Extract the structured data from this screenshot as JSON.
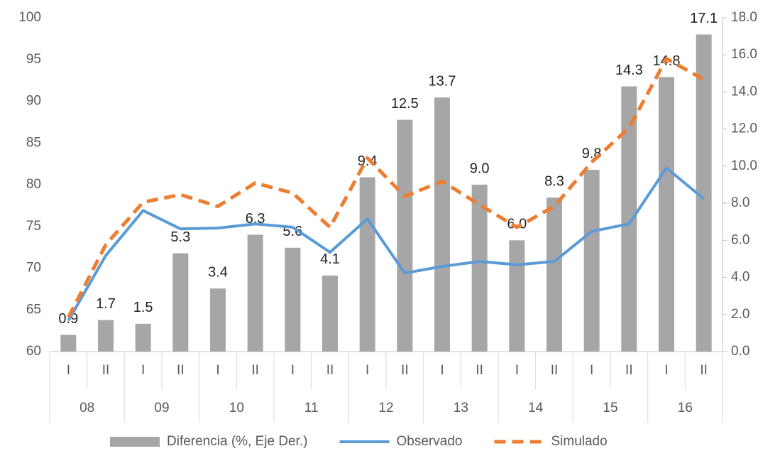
{
  "chart_data": {
    "type": "bar-line",
    "categories": [
      "I",
      "II",
      "I",
      "II",
      "I",
      "II",
      "I",
      "II",
      "I",
      "II",
      "I",
      "II",
      "I",
      "II",
      "I",
      "II",
      "I",
      "II"
    ],
    "groups": [
      "08",
      "09",
      "10",
      "11",
      "12",
      "13",
      "14",
      "15",
      "16"
    ],
    "ylim": [
      60,
      100
    ],
    "yticks": [
      60,
      65,
      70,
      75,
      80,
      85,
      90,
      95,
      100
    ],
    "y2lim": [
      0,
      18
    ],
    "y2ticks": [
      {
        "value": 0,
        "label": "0.0"
      },
      {
        "value": 2,
        "label": "2.0"
      },
      {
        "value": 4,
        "label": "4.0"
      },
      {
        "value": 6,
        "label": "6.0"
      },
      {
        "value": 8,
        "label": "8.0"
      },
      {
        "value": 10,
        "label": "10.0"
      },
      {
        "value": 12,
        "label": "12.0"
      },
      {
        "value": 14,
        "label": "14.0"
      },
      {
        "value": 16,
        "label": "16.0"
      },
      {
        "value": 18,
        "label": "18.0"
      }
    ],
    "series": [
      {
        "name": "Diferencia (%, Eje Der.)",
        "type": "bar",
        "axis": "y2",
        "color": "#a6a6a6",
        "values": [
          0.9,
          1.7,
          1.5,
          5.3,
          3.4,
          6.3,
          5.6,
          4.1,
          9.4,
          12.5,
          13.7,
          9.0,
          6.0,
          8.3,
          9.8,
          14.3,
          14.8,
          17.1
        ],
        "value_labels": [
          "0.9",
          "1.7",
          "1.5",
          "5.3",
          "3.4",
          "6.3",
          "5.6",
          "4.1",
          "9.4",
          "12.5",
          "13.7",
          "9.0",
          "6.0",
          "8.3",
          "9.8",
          "14.3",
          "14.8",
          "17.1"
        ]
      },
      {
        "name": "Observado",
        "type": "line",
        "color": "#5b9bd5",
        "values": [
          63.7,
          71.5,
          76.9,
          74.7,
          74.8,
          75.3,
          74.9,
          71.9,
          75.9,
          69.4,
          70.2,
          70.8,
          70.4,
          70.8,
          74.4,
          75.3,
          82.0,
          78.3
        ]
      },
      {
        "name": "Simulado",
        "type": "line",
        "dashed": true,
        "color": "#ed7d31",
        "values": [
          64.1,
          72.8,
          77.9,
          78.8,
          77.4,
          80.2,
          79.0,
          74.9,
          83.2,
          78.6,
          80.4,
          77.6,
          74.9,
          77.4,
          82.7,
          86.8,
          95.1,
          92.6
        ]
      }
    ]
  }
}
